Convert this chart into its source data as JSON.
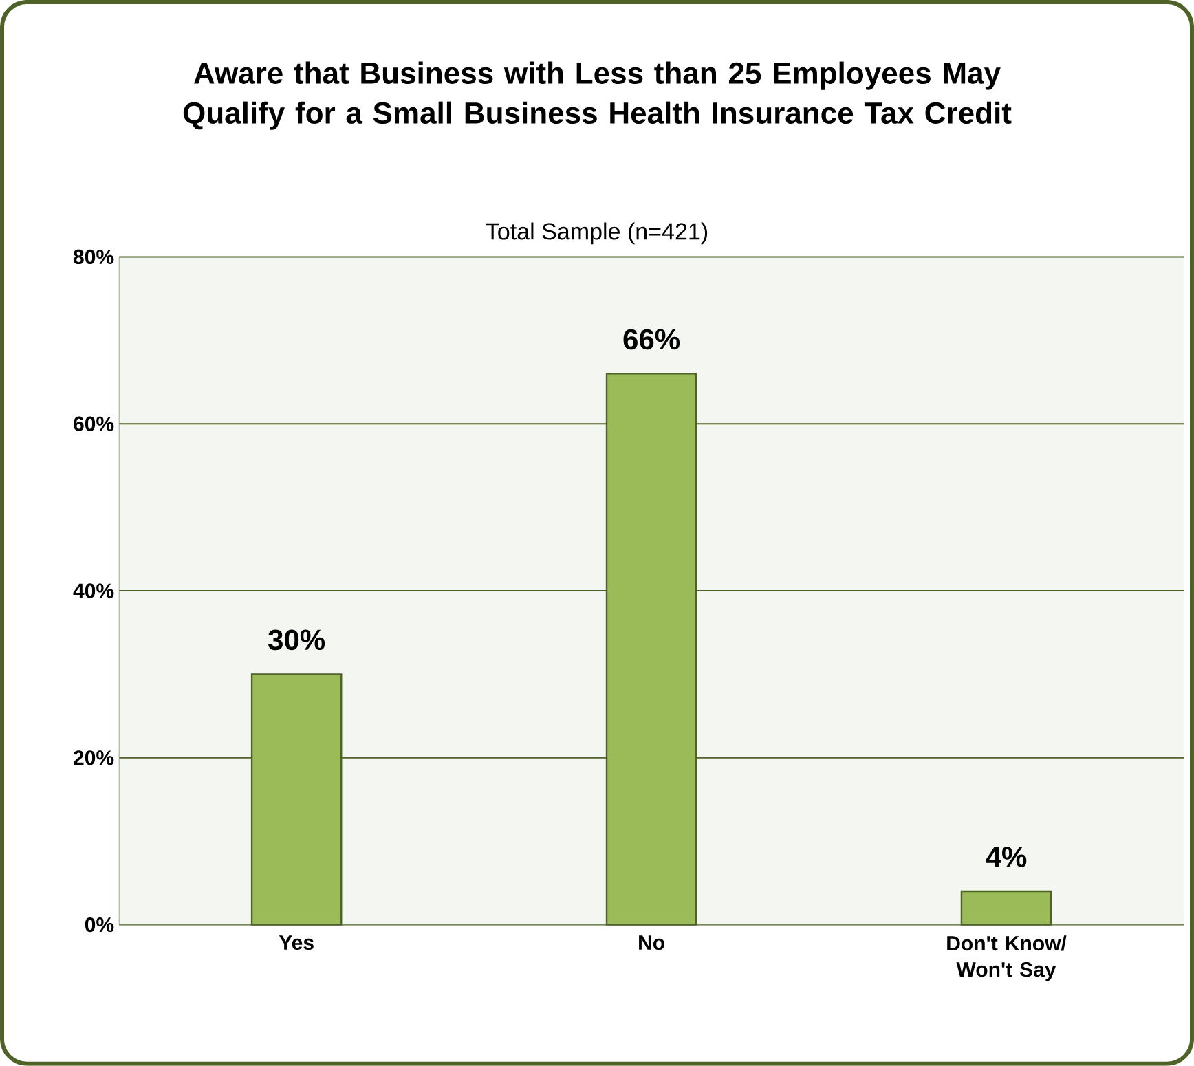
{
  "chart_data": {
    "type": "bar",
    "title": "Aware that Business with Less than 25 Employees May Qualify for a Small Business Health Insurance Tax Credit",
    "subtitle": "Total Sample (n=421)",
    "categories": [
      "Yes",
      "No",
      "Don't Know/ Won't Say"
    ],
    "values": [
      30,
      66,
      4
    ],
    "value_labels": [
      "30%",
      "66%",
      "4%"
    ],
    "color": "#9bbb59",
    "ylim": [
      0,
      80
    ],
    "yticks": [
      {
        "value": 0,
        "label": "0%"
      },
      {
        "value": 20,
        "label": "20%"
      },
      {
        "value": 40,
        "label": "40%"
      },
      {
        "value": 60,
        "label": "60%"
      },
      {
        "value": 80,
        "label": "80%"
      }
    ],
    "grid": "y"
  }
}
